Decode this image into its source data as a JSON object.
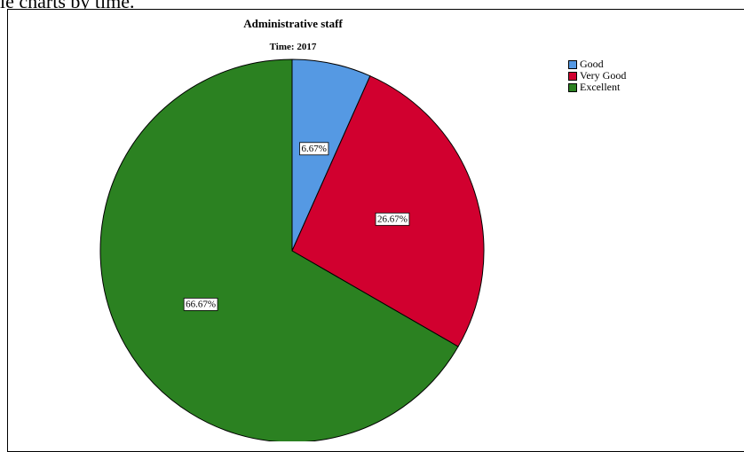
{
  "page": {
    "top_text": "ie charts by time."
  },
  "chart_data": {
    "type": "pie",
    "title": "Administrative staff",
    "subtitle": "Time: 2017",
    "start_angle_deg": 0,
    "direction": "clockwise",
    "slices": [
      {
        "label": "Good",
        "value": 6.67,
        "display": "6.67%",
        "color": "#5599e3"
      },
      {
        "label": "Very Good",
        "value": 26.67,
        "display": "26.67%",
        "color": "#d1002f"
      },
      {
        "label": "Excellent",
        "value": 66.67,
        "display": "66.67%",
        "color": "#2b8121"
      }
    ],
    "legend": {
      "placement": "top-right"
    }
  }
}
